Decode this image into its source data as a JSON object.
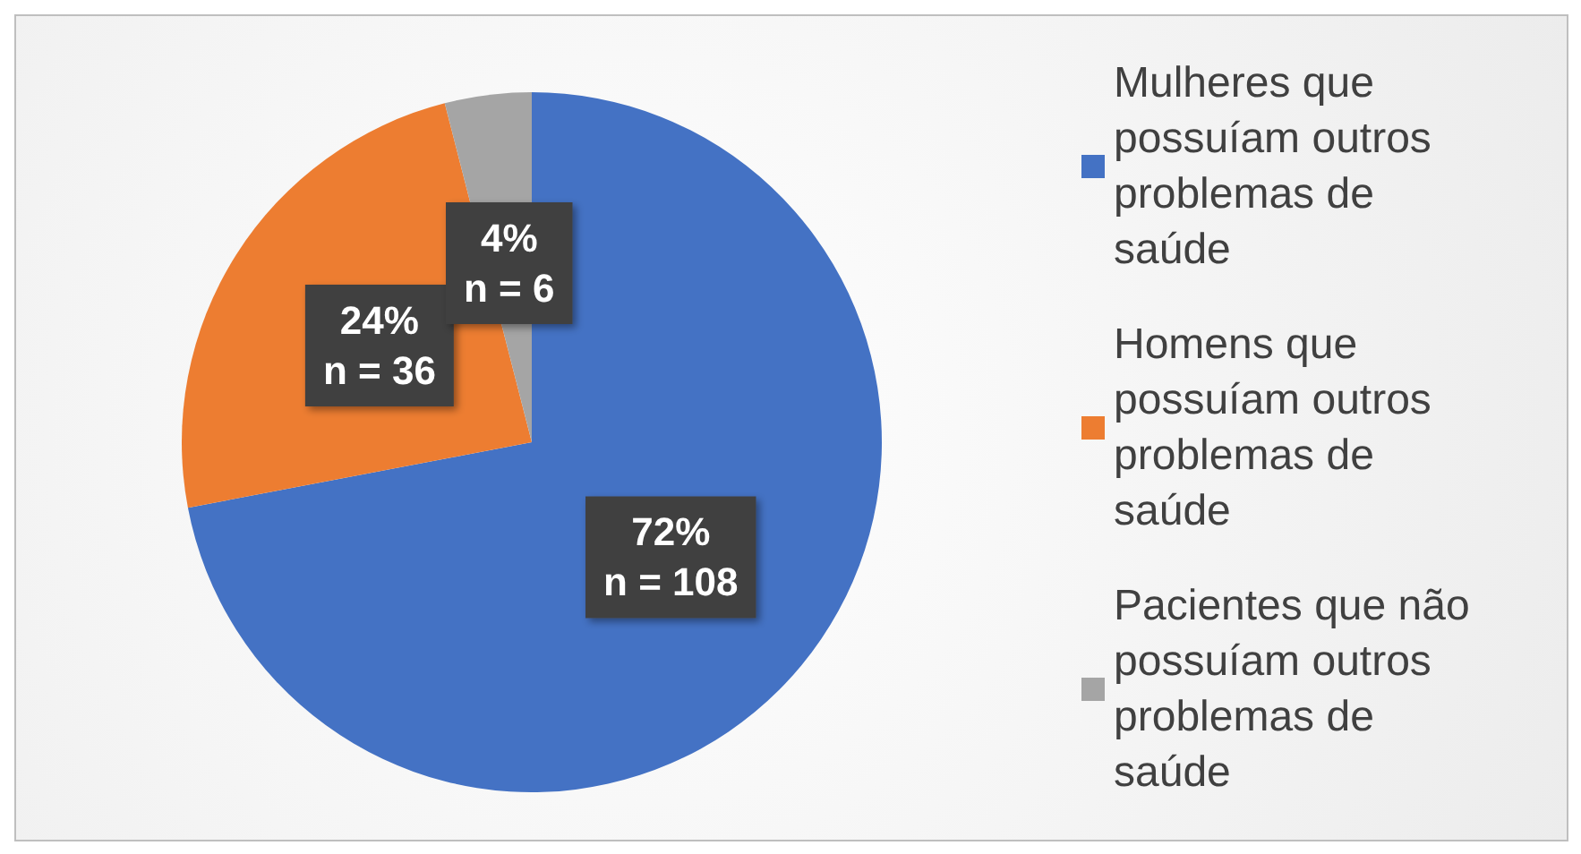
{
  "chart_data": {
    "type": "pie",
    "categories": [
      "Mulheres que possuíam outros problemas de saúde",
      "Homens que possuíam outros problemas de saúde",
      "Pacientes que não possuíam outros problemas de saúde"
    ],
    "values": [
      108,
      36,
      6
    ],
    "colors": [
      "#4472c4",
      "#ed7d31",
      "#a5a5a5"
    ],
    "value_labels": [
      "72%\nn = 108",
      "24%\nn = 36",
      "4%\nn = 6"
    ],
    "legend": "right"
  }
}
